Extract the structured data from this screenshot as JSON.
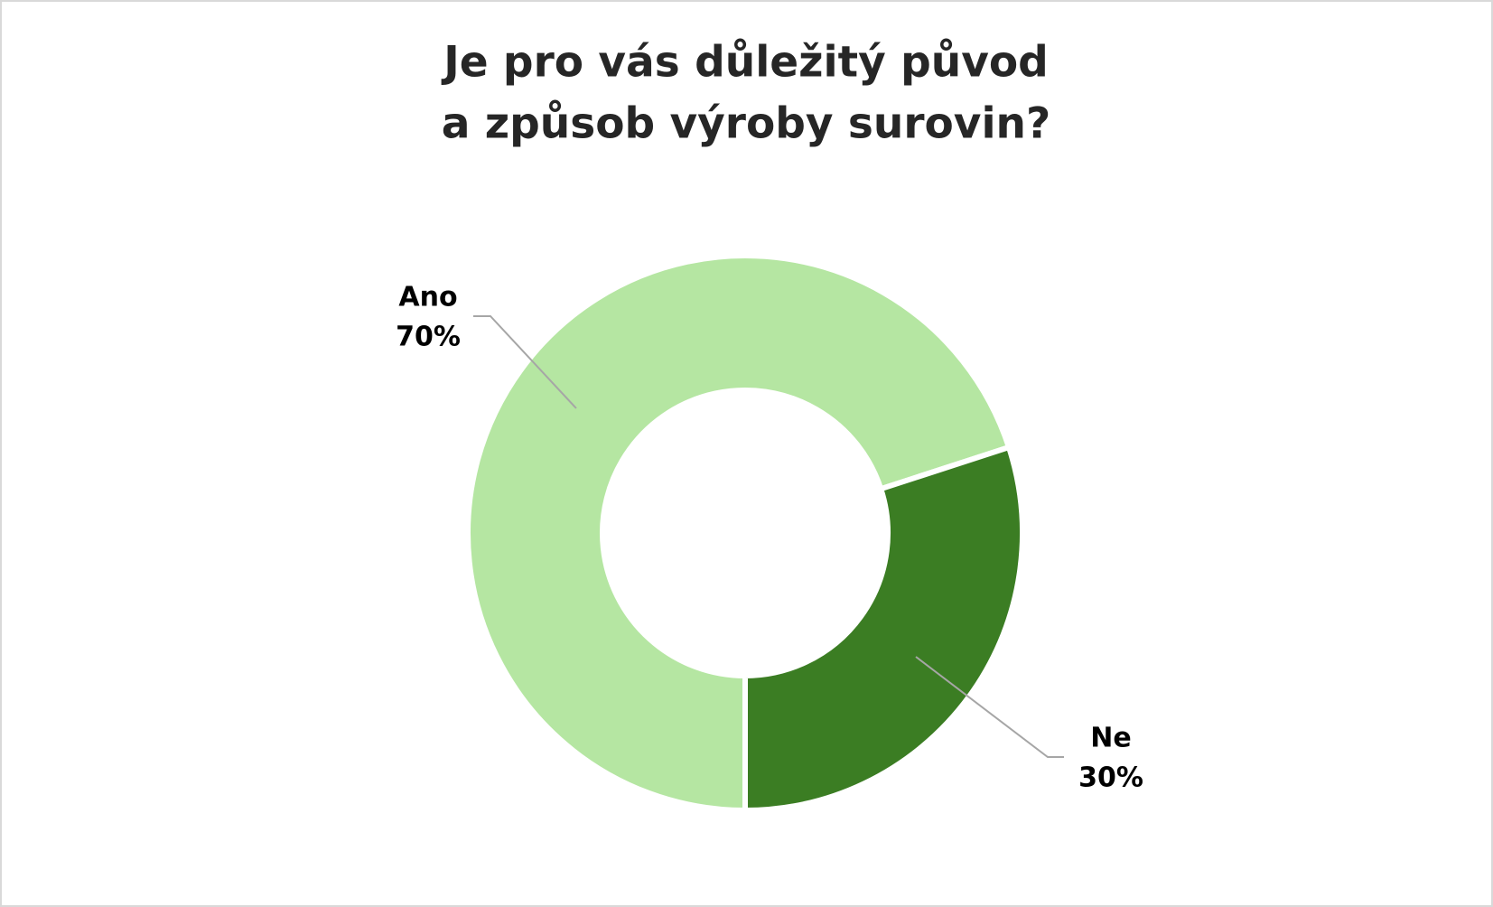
{
  "chart_data": {
    "type": "donut",
    "title": [
      "Je pro vás důležitý původ",
      "a způsob výroby surovin?"
    ],
    "categories": [
      "Ano",
      "Ne"
    ],
    "values": [
      70,
      30
    ],
    "value_labels": [
      "70%",
      "30%"
    ],
    "colors": [
      "#b5e6a2",
      "#3b7d23"
    ]
  }
}
